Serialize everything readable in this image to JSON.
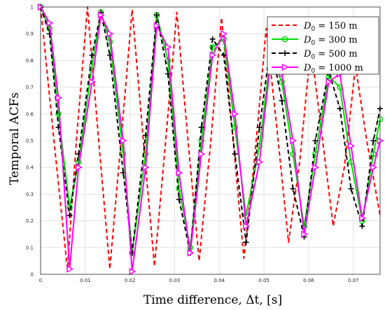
{
  "chart_data": {
    "type": "line",
    "xlabel": "Time difference, Δt, [s]",
    "ylabel": "Temporal ACFs",
    "xlim": [
      0,
      0.076
    ],
    "ylim": [
      0,
      1
    ],
    "xticks": [
      0,
      0.01,
      0.02,
      0.03,
      0.04,
      0.05,
      0.06,
      0.07
    ],
    "xtick_labels": [
      "0",
      "0.01",
      "0.02",
      "0.03",
      "0.04",
      "0.05",
      "0.06",
      "0.07"
    ],
    "yticks": [
      0,
      0.1,
      0.2,
      0.3,
      0.4,
      0.5,
      0.6,
      0.7,
      0.8,
      0.9,
      1
    ],
    "ytick_labels": [
      "0",
      "0.1",
      "0.2",
      "0.3",
      "0.4",
      "0.5",
      "0.6",
      "0.7",
      "0.8",
      "0.9",
      "1"
    ],
    "grid": true,
    "legend_position": "top-right",
    "series": [
      {
        "name": "D₀ = 150 m",
        "legend_math": {
          "sym": "D",
          "sub": "0",
          "rest": " = 150 m"
        },
        "color": "#ff0000",
        "dash": "dashed",
        "marker": "none",
        "x": [
          0,
          0.003,
          0.006,
          0.008,
          0.0105,
          0.013,
          0.0155,
          0.018,
          0.0205,
          0.023,
          0.0255,
          0.028,
          0.0305,
          0.033,
          0.0355,
          0.038,
          0.0405,
          0.043,
          0.0455,
          0.048,
          0.0505,
          0.053,
          0.0555,
          0.058,
          0.0605,
          0.063,
          0.0655,
          0.068,
          0.0705,
          0.073,
          0.076
        ],
        "y": [
          1,
          0.5,
          0.02,
          0.5,
          1,
          0.5,
          0.02,
          0.5,
          0.99,
          0.5,
          0.03,
          0.5,
          0.98,
          0.5,
          0.05,
          0.48,
          0.96,
          0.52,
          0.06,
          0.45,
          0.92,
          0.53,
          0.12,
          0.42,
          0.85,
          0.52,
          0.18,
          0.4,
          0.78,
          0.5,
          0.22
        ]
      },
      {
        "name": "D₀ = 300 m",
        "legend_math": {
          "sym": "D",
          "sub": "0",
          "rest": " = 300 m"
        },
        "color": "#00dd00",
        "dash": "solid",
        "marker": "circle",
        "x": [
          0,
          0.002,
          0.004,
          0.0065,
          0.0085,
          0.0115,
          0.0135,
          0.0155,
          0.0185,
          0.0205,
          0.0235,
          0.026,
          0.0285,
          0.031,
          0.0335,
          0.036,
          0.0385,
          0.041,
          0.0435,
          0.046,
          0.049,
          0.0515,
          0.054,
          0.0565,
          0.059,
          0.0615,
          0.0645,
          0.067,
          0.0695,
          0.072,
          0.0745,
          0.076
        ],
        "y": [
          1,
          0.92,
          0.6,
          0.25,
          0.42,
          0.78,
          0.98,
          0.87,
          0.45,
          0.08,
          0.45,
          0.97,
          0.8,
          0.32,
          0.1,
          0.5,
          0.85,
          0.88,
          0.55,
          0.22,
          0.48,
          0.82,
          0.72,
          0.45,
          0.18,
          0.45,
          0.74,
          0.7,
          0.42,
          0.2,
          0.45,
          0.58
        ]
      },
      {
        "name": "D₀ = 500 m",
        "legend_math": {
          "sym": "D",
          "sub": "0",
          "rest": " = 500 m"
        },
        "color": "#000000",
        "dash": "dashed",
        "marker": "plus",
        "x": [
          0,
          0.002,
          0.004,
          0.0065,
          0.0085,
          0.0115,
          0.0135,
          0.0155,
          0.0185,
          0.0205,
          0.0235,
          0.026,
          0.0285,
          0.031,
          0.0335,
          0.036,
          0.0385,
          0.041,
          0.0435,
          0.046,
          0.049,
          0.0515,
          0.054,
          0.0565,
          0.059,
          0.0615,
          0.0645,
          0.067,
          0.0695,
          0.072,
          0.0745,
          0.076
        ],
        "y": [
          1,
          0.9,
          0.55,
          0.22,
          0.45,
          0.82,
          0.98,
          0.82,
          0.38,
          0.08,
          0.52,
          0.97,
          0.75,
          0.28,
          0.08,
          0.55,
          0.88,
          0.82,
          0.45,
          0.12,
          0.55,
          0.86,
          0.65,
          0.32,
          0.14,
          0.5,
          0.76,
          0.62,
          0.32,
          0.18,
          0.5,
          0.62
        ]
      },
      {
        "name": "D₀ = 1000 m",
        "legend_math": {
          "sym": "D",
          "sub": "0",
          "rest": " = 1000 m"
        },
        "color": "#ff00ff",
        "dash": "solid",
        "marker": "triangle-right",
        "x": [
          0,
          0.002,
          0.004,
          0.0065,
          0.0085,
          0.0115,
          0.0135,
          0.0155,
          0.0185,
          0.0205,
          0.0235,
          0.026,
          0.0285,
          0.031,
          0.0335,
          0.036,
          0.0385,
          0.041,
          0.0435,
          0.046,
          0.049,
          0.0515,
          0.054,
          0.0565,
          0.059,
          0.0615,
          0.0645,
          0.067,
          0.0695,
          0.072,
          0.0745,
          0.076
        ],
        "y": [
          1,
          0.94,
          0.66,
          0.02,
          0.4,
          0.72,
          0.97,
          0.9,
          0.5,
          0.01,
          0.4,
          0.93,
          0.85,
          0.38,
          0.08,
          0.45,
          0.82,
          0.9,
          0.6,
          0.18,
          0.42,
          0.8,
          0.75,
          0.5,
          0.15,
          0.4,
          0.72,
          0.75,
          0.48,
          0.21,
          0.4,
          0.5
        ]
      }
    ]
  }
}
